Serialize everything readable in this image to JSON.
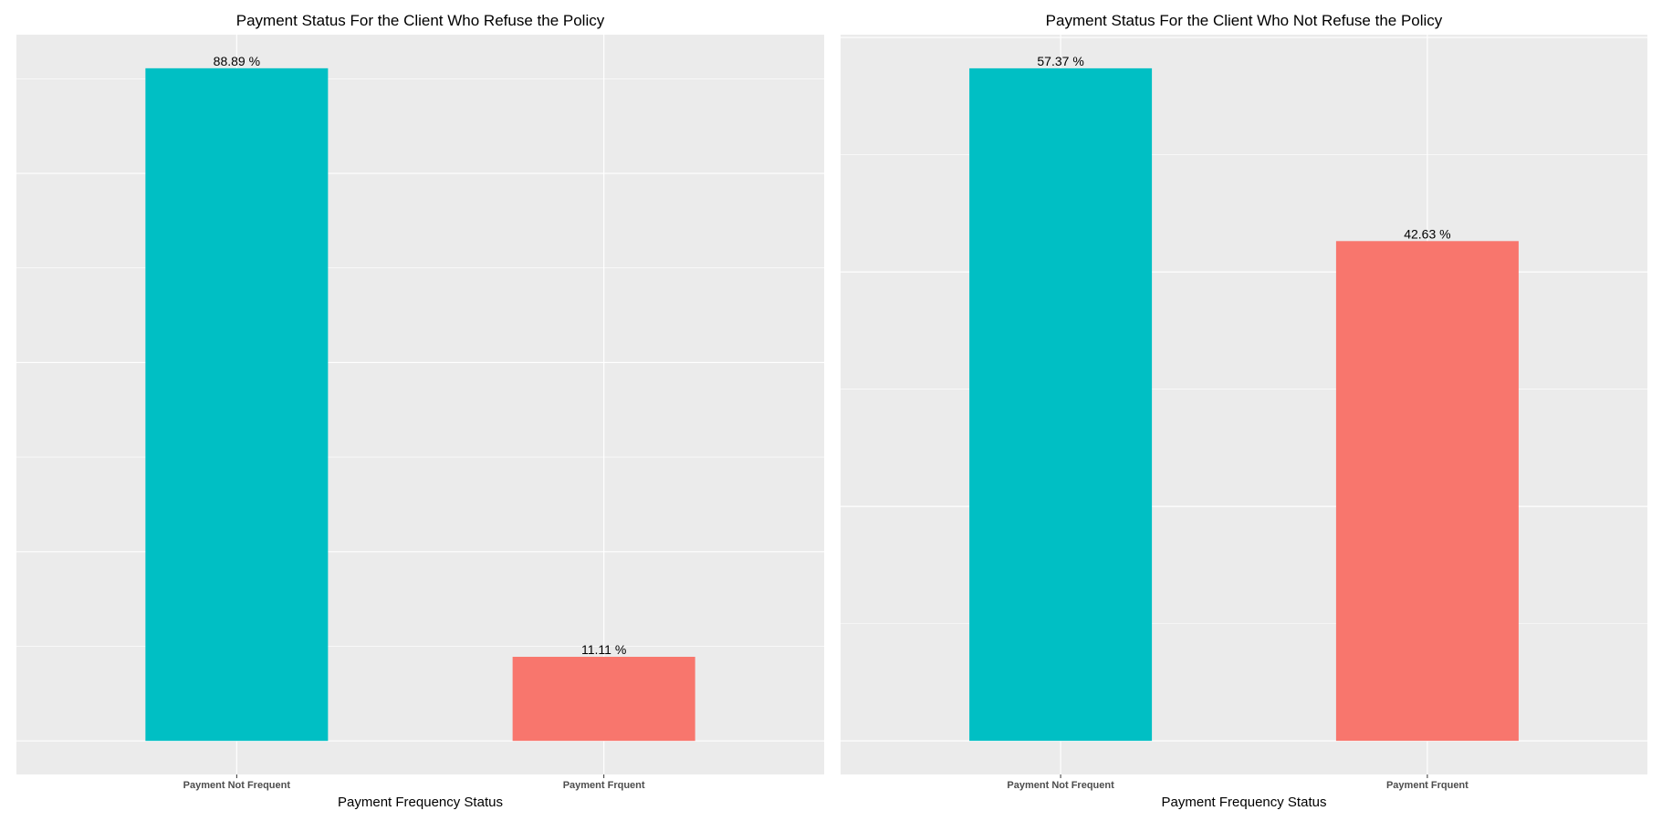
{
  "chart_data": [
    {
      "type": "bar",
      "title": "Payment Status For the Client Who Refuse the Policy",
      "xlabel": "Payment Frequency Status",
      "ylabel": "",
      "categories": [
        "Payment Not Frequent",
        "Payment Frquent"
      ],
      "values": [
        88.89,
        11.11
      ],
      "data_labels": [
        "88.89 %",
        "11.11 %"
      ],
      "colors": [
        "#00BFC4",
        "#F8766D"
      ],
      "ylim": [
        -4.44,
        93.33
      ],
      "y_major_breaks": [
        0,
        25,
        50,
        75
      ],
      "y_minor_breaks": [
        12.5,
        37.5,
        62.5,
        87.5
      ],
      "y_tick_labels_shown": false,
      "grid": true,
      "legend": "none",
      "panel_background": "#EBEBEB",
      "gridline_color": "#FFFFFF"
    },
    {
      "type": "bar",
      "title": "Payment Status For the Client Who Not Refuse the Policy",
      "xlabel": "Payment Frequency Status",
      "ylabel": "",
      "categories": [
        "Payment Not Frequent",
        "Payment Frquent"
      ],
      "values": [
        57.37,
        42.63
      ],
      "data_labels": [
        "57.37 %",
        "42.63 %"
      ],
      "colors": [
        "#00BFC4",
        "#F8766D"
      ],
      "ylim": [
        -2.87,
        60.24
      ],
      "y_major_breaks": [
        0,
        20,
        40,
        60
      ],
      "y_minor_breaks": [
        10,
        30,
        50
      ],
      "y_tick_labels_shown": false,
      "grid": true,
      "legend": "none",
      "panel_background": "#EBEBEB",
      "gridline_color": "#FFFFFF"
    }
  ]
}
